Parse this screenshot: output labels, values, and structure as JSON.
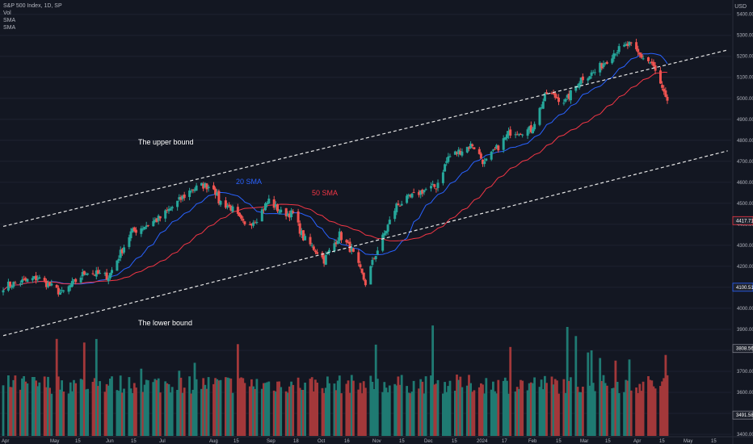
{
  "legend": {
    "title": "S&P 500 Index, 1D, SP",
    "line2": "Vol",
    "line3": "SMA",
    "line4": "SMA"
  },
  "currency": "USD",
  "colors": {
    "background": "#131722",
    "up": "#26a69a",
    "down": "#ef5350",
    "vol_up": "#1f7a72",
    "vol_down": "#a3383a",
    "sma20": "#2962ff",
    "sma50": "#f23645",
    "channel": "#e6e6e6",
    "grid": "#1e2230",
    "axis_text": "#b2b5be"
  },
  "annotations": {
    "upper": "The upper bound",
    "lower": "The lower bound",
    "sma20": "20 SMA",
    "sma50": "50 SMA"
  },
  "chart_data": {
    "type": "candlestick",
    "title": "S&P 500 Index, 1D, SP",
    "price_axis": {
      "ticks": [
        5400,
        5300,
        5200,
        5100,
        5000,
        4900,
        4800,
        4700,
        4600,
        4500,
        4400,
        4300,
        4200,
        4100,
        4000,
        3900,
        3800,
        3700,
        3600,
        3500,
        3400
      ],
      "tick_labels": [
        "5400.00",
        "5300.00",
        "5200.00",
        "5100.00",
        "5000.00",
        "4900.00",
        "4800.00",
        "4700.00",
        "4600.00",
        "4500.00",
        "4400.00",
        "4300.00",
        "4200.00",
        "4100.00",
        "4000.00",
        "3900.00",
        "3800.00",
        "3700.00",
        "3600.00",
        "3500.00",
        "3400.00"
      ],
      "range": [
        3354,
        5468
      ]
    },
    "price_markers": [
      {
        "label": "4417.71",
        "value": 4417.71,
        "color": "#f23645"
      },
      {
        "label": "4100.51",
        "value": 4100.51,
        "color": "#2962ff"
      },
      {
        "label": "3808.56",
        "value": 3808.56,
        "color": "#787b86"
      },
      {
        "label": "3491.58",
        "value": 3491.58,
        "color": "#787b86"
      }
    ],
    "time_axis": [
      "Apr",
      "May",
      "15",
      "Jun",
      "15",
      "Jul",
      "Aug",
      "15",
      "Sep",
      "18",
      "Oct",
      "16",
      "Nov",
      "15",
      "Dec",
      "15",
      "2024",
      "17",
      "Feb",
      "15",
      "Mar",
      "15",
      "Apr",
      "15",
      "May",
      "15"
    ],
    "sma_periods": [
      20,
      50
    ],
    "channel_lines": [
      {
        "name": "The upper bound",
        "start": [
          "2023-03-31",
          4390
        ],
        "end": [
          "2024-05-24",
          5230
        ]
      },
      {
        "name": "The lower bound",
        "start": [
          "2023-03-31",
          3870
        ],
        "end": [
          "2024-05-24",
          4750
        ]
      }
    ],
    "ohlc_close_anchors": [
      [
        "2023-03-31",
        4105
      ],
      [
        "2023-04-20",
        4145
      ],
      [
        "2023-05-04",
        4070
      ],
      [
        "2023-05-18",
        4175
      ],
      [
        "2023-05-31",
        4150
      ],
      [
        "2023-06-13",
        4360
      ],
      [
        "2023-06-30",
        4430
      ],
      [
        "2023-07-18",
        4565
      ],
      [
        "2023-07-25",
        4585
      ],
      [
        "2023-07-31",
        4580
      ],
      [
        "2023-08-03",
        4510
      ],
      [
        "2023-08-10",
        4480
      ],
      [
        "2023-08-18",
        4390
      ],
      [
        "2023-08-25",
        4430
      ],
      [
        "2023-09-01",
        4515
      ],
      [
        "2023-09-08",
        4455
      ],
      [
        "2023-09-15",
        4450
      ],
      [
        "2023-09-21",
        4335
      ],
      [
        "2023-09-29",
        4270
      ],
      [
        "2023-10-03",
        4230
      ],
      [
        "2023-10-12",
        4350
      ],
      [
        "2023-10-19",
        4275
      ],
      [
        "2023-10-27",
        4120
      ],
      [
        "2023-11-01",
        4240
      ],
      [
        "2023-11-14",
        4490
      ],
      [
        "2023-11-29",
        4560
      ],
      [
        "2023-12-07",
        4580
      ],
      [
        "2023-12-14",
        4720
      ],
      [
        "2023-12-28",
        4780
      ],
      [
        "2024-01-04",
        4690
      ],
      [
        "2024-01-19",
        4840
      ],
      [
        "2024-01-31",
        4850
      ],
      [
        "2024-02-09",
        5025
      ],
      [
        "2024-02-20",
        4985
      ],
      [
        "2024-02-29",
        5095
      ],
      [
        "2024-03-08",
        5125
      ],
      [
        "2024-03-20",
        5225
      ],
      [
        "2024-03-28",
        5255
      ],
      [
        "2024-04-03",
        5205
      ],
      [
        "2024-04-10",
        5165
      ],
      [
        "2024-04-15",
        5065
      ],
      [
        "2024-04-19",
        4970
      ]
    ]
  }
}
